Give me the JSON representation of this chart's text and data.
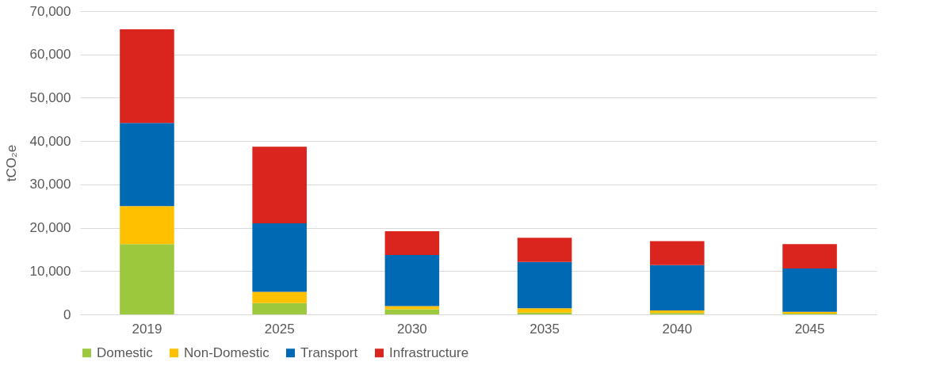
{
  "chart_data": {
    "type": "bar",
    "stacked": true,
    "ylabel": "tCO₂e",
    "categories": [
      "2019",
      "2025",
      "2030",
      "2035",
      "2040",
      "2045"
    ],
    "series": [
      {
        "name": "Domestic",
        "color": "#9bc83c",
        "values": [
          16200,
          2600,
          1200,
          400,
          300,
          200
        ]
      },
      {
        "name": "Non-Domestic",
        "color": "#ffc000",
        "values": [
          8800,
          2600,
          700,
          1000,
          600,
          400
        ]
      },
      {
        "name": "Transport",
        "color": "#0069b4",
        "values": [
          19200,
          15800,
          11800,
          10700,
          10500,
          10000
        ]
      },
      {
        "name": "Infrastructure",
        "color": "#d9251e",
        "values": [
          21600,
          17700,
          5500,
          5600,
          5500,
          5600
        ]
      }
    ],
    "ylim": [
      0,
      70000
    ],
    "yticks": [
      {
        "value": 0,
        "label": "0"
      },
      {
        "value": 10000,
        "label": "10,000"
      },
      {
        "value": 20000,
        "label": "20,000"
      },
      {
        "value": 30000,
        "label": "30,000"
      },
      {
        "value": 40000,
        "label": "40,000"
      },
      {
        "value": 50000,
        "label": "50,000"
      },
      {
        "value": 60000,
        "label": "60,000"
      },
      {
        "value": 70000,
        "label": "70,000"
      }
    ],
    "grid": "y",
    "legend": "bottom"
  }
}
